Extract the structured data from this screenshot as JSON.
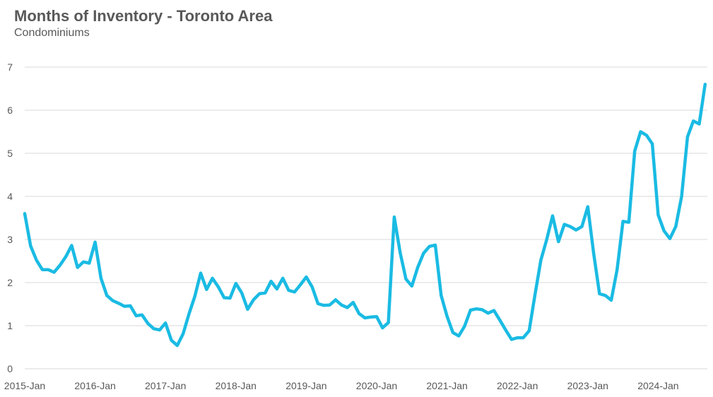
{
  "chart_data": {
    "type": "line",
    "title": "Months of Inventory - Toronto Area",
    "subtitle": "Condominiums",
    "xlabel": "",
    "ylabel": "",
    "ylim": [
      0,
      7
    ],
    "yticks": [
      0,
      1,
      2,
      3,
      4,
      5,
      6,
      7
    ],
    "xtick_labels": [
      "2015-Jan",
      "2016-Jan",
      "2017-Jan",
      "2018-Jan",
      "2019-Jan",
      "2020-Jan",
      "2021-Jan",
      "2022-Jan",
      "2023-Jan",
      "2024-Jan"
    ],
    "grid": "horizontal",
    "legend": "none",
    "series_color": "#1ABBE3",
    "series": [
      {
        "name": "",
        "start": "2015-01",
        "values": [
          3.6,
          2.85,
          2.52,
          2.3,
          2.3,
          2.24,
          2.4,
          2.6,
          2.86,
          2.35,
          2.48,
          2.45,
          2.94,
          2.1,
          1.7,
          1.58,
          1.52,
          1.45,
          1.46,
          1.23,
          1.25,
          1.05,
          0.93,
          0.9,
          1.06,
          0.66,
          0.54,
          0.81,
          1.27,
          1.68,
          2.22,
          1.84,
          2.1,
          1.9,
          1.65,
          1.64,
          1.98,
          1.76,
          1.38,
          1.6,
          1.74,
          1.76,
          2.03,
          1.85,
          2.1,
          1.82,
          1.78,
          1.95,
          2.13,
          1.9,
          1.51,
          1.47,
          1.48,
          1.6,
          1.48,
          1.42,
          1.54,
          1.28,
          1.18,
          1.2,
          1.21,
          0.95,
          1.07,
          3.52,
          2.7,
          2.08,
          1.92,
          2.35,
          2.68,
          2.84,
          2.87,
          1.7,
          1.22,
          0.84,
          0.76,
          0.99,
          1.36,
          1.39,
          1.37,
          1.29,
          1.35,
          1.13,
          0.9,
          0.68,
          0.72,
          0.72,
          0.88,
          1.72,
          2.52,
          3.0,
          3.55,
          2.95,
          3.35,
          3.3,
          3.22,
          3.3,
          3.76,
          2.68,
          1.74,
          1.7,
          1.59,
          2.3,
          3.42,
          3.4,
          5.05,
          5.5,
          5.42,
          5.22,
          3.57,
          3.2,
          3.02,
          3.3,
          4.0,
          5.38,
          5.75,
          5.68,
          6.6
        ]
      }
    ]
  }
}
